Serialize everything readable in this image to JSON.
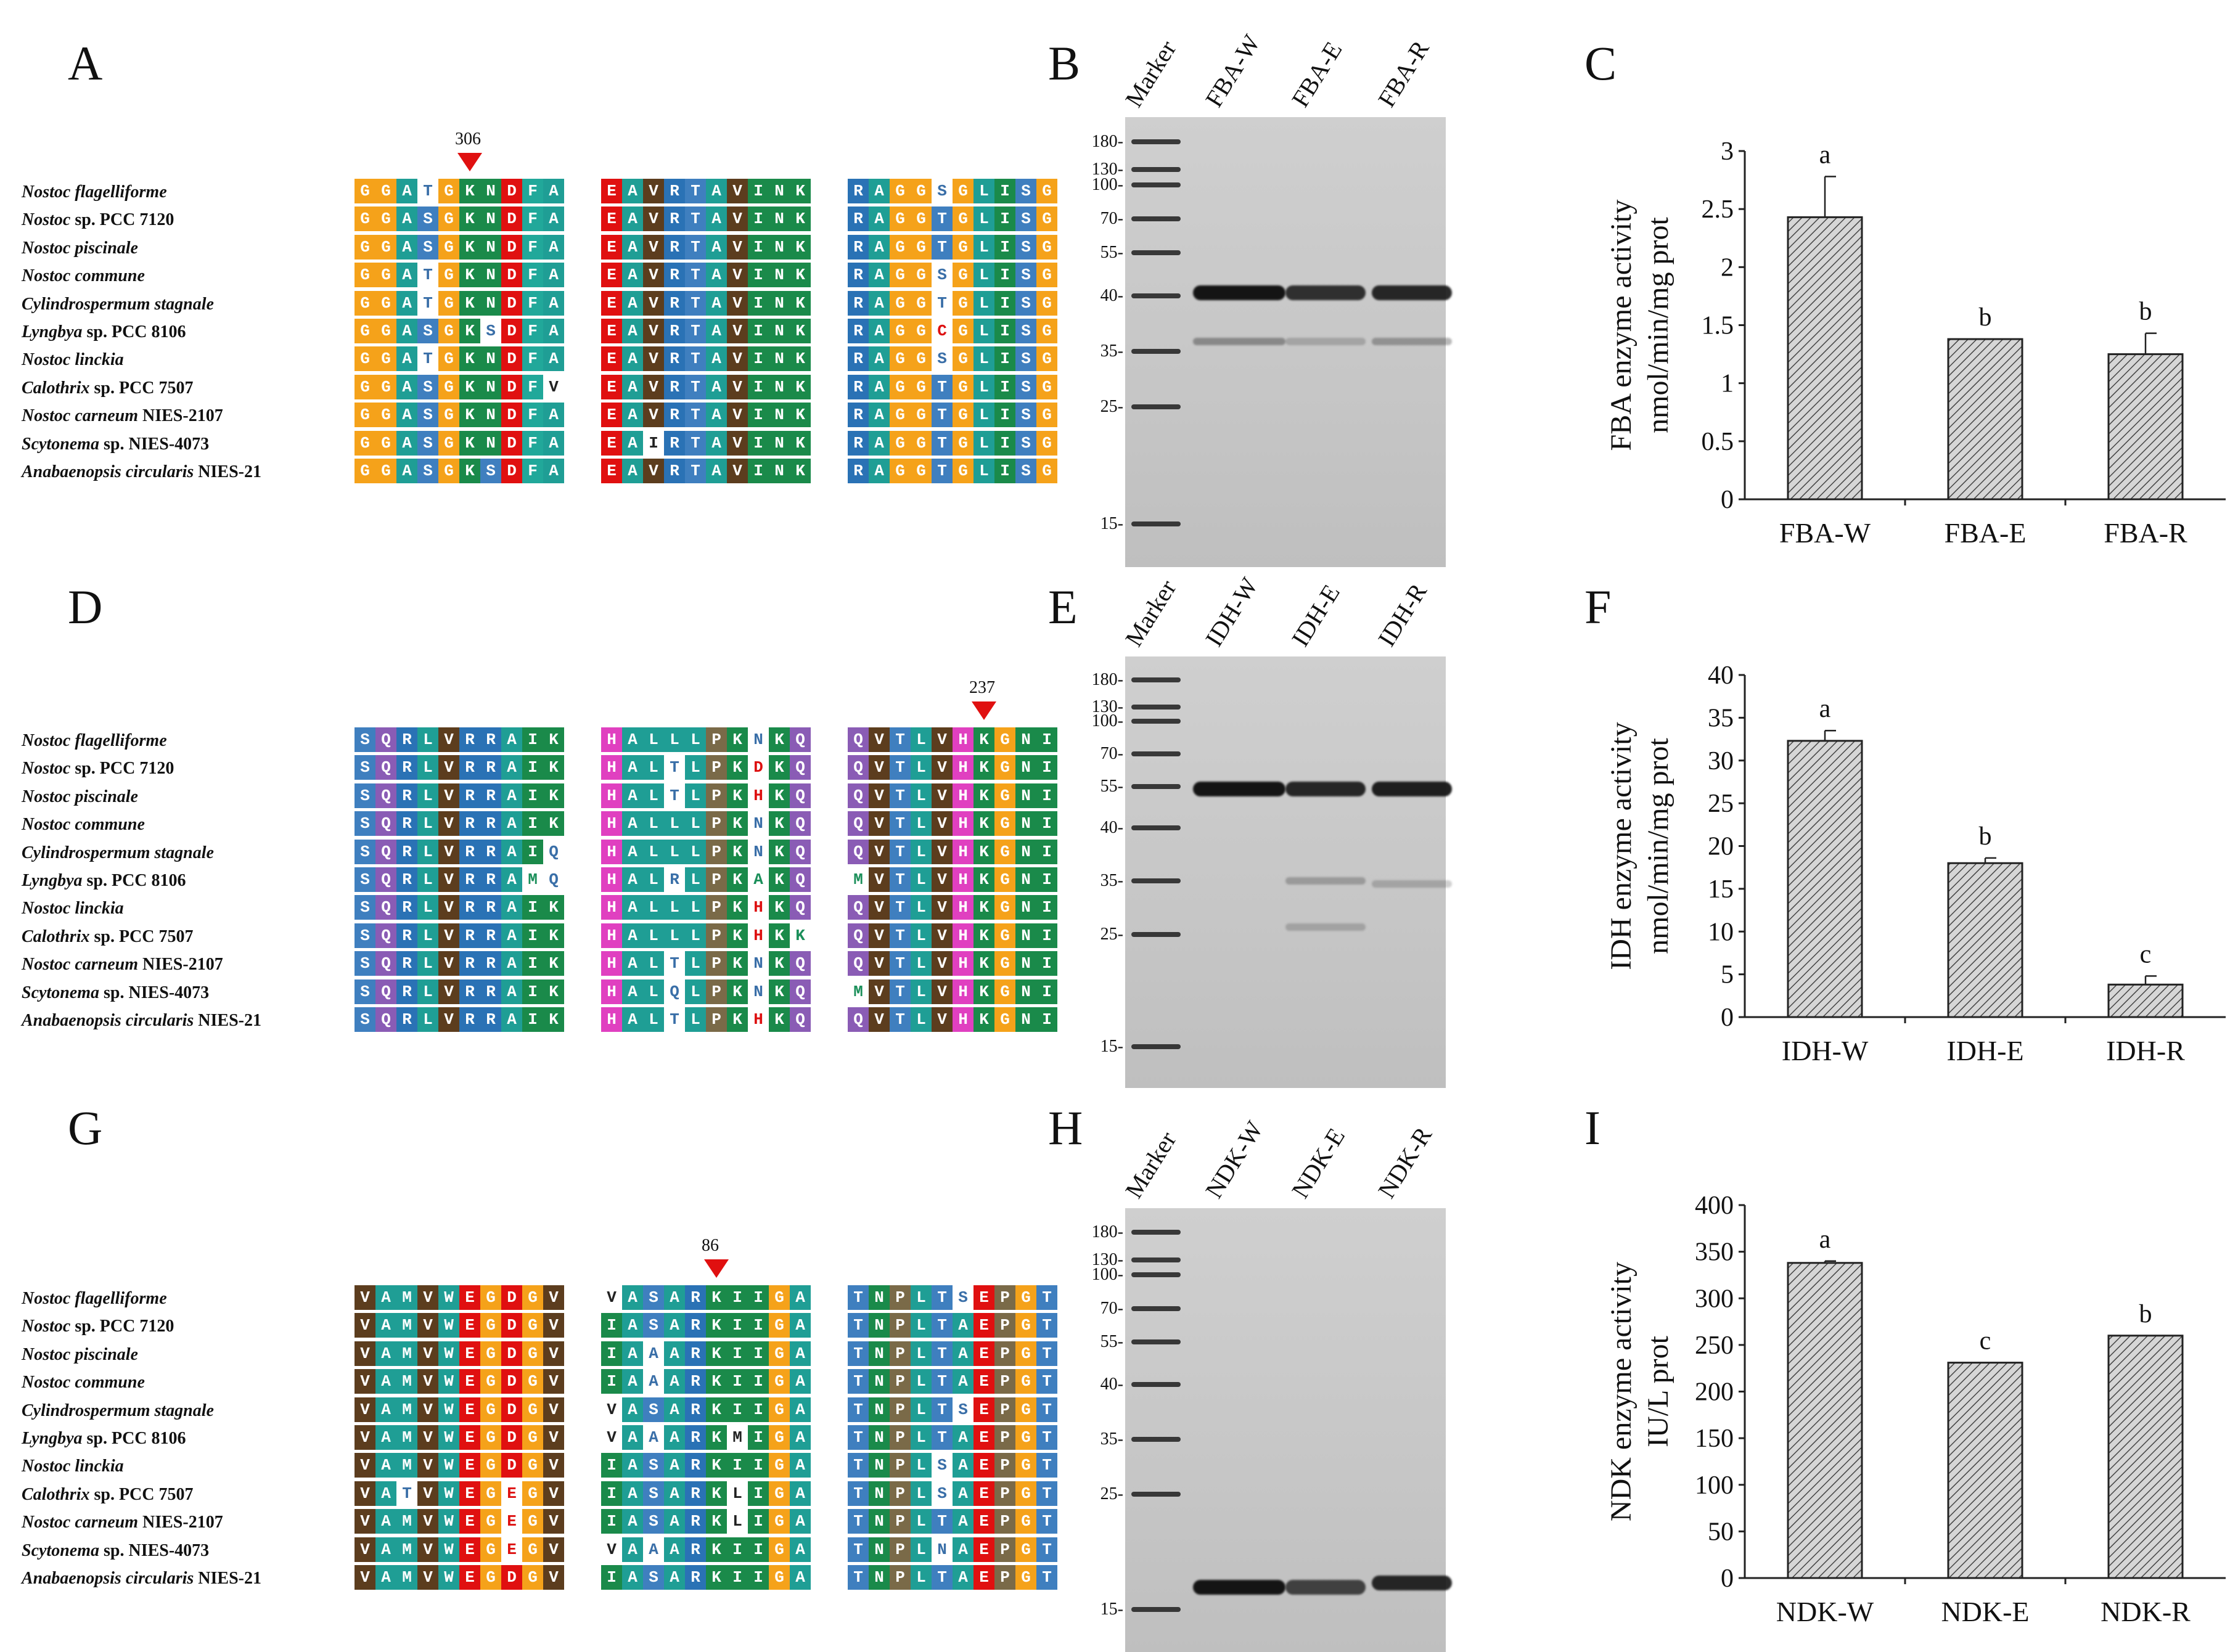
{
  "panels": {
    "A": "A",
    "B": "B",
    "C": "C",
    "D": "D",
    "E": "E",
    "F": "F",
    "G": "G",
    "H": "H",
    "I": "I"
  },
  "species": [
    {
      "genus": "Nostoc flagelliforme",
      "rest": ""
    },
    {
      "genus": "Nostoc",
      "rest": " sp. PCC 7120"
    },
    {
      "genus": "Nostoc piscinale",
      "rest": ""
    },
    {
      "genus": "Nostoc commune",
      "rest": ""
    },
    {
      "genus": "Cylindrospermum stagnale",
      "rest": ""
    },
    {
      "genus": "Lyngbya",
      "rest": " sp. PCC 8106"
    },
    {
      "genus": "Nostoc linckia",
      "rest": ""
    },
    {
      "genus": "Calothrix",
      "rest": " sp. PCC 7507"
    },
    {
      "genus": "Nostoc carneum",
      "rest": " NIES-2107"
    },
    {
      "genus": "Scytonema",
      "rest": " sp. NIES-4073"
    },
    {
      "genus": "Anabaenopsis circularis",
      "rest": " NIES-21"
    }
  ],
  "alignments": {
    "A": {
      "marker": "306",
      "blocks": [
        [
          "GGATGKNDFA",
          "GGASGKNDFA",
          "GGASGKNDFA",
          "GGATGKNDFA",
          "GGATGKNDFA",
          "GGASGKSDFA",
          "GGATGKNDFA",
          "GGASGKNDFV",
          "GGASGKNDFA",
          "GGASGKNDFA",
          "GGASGKSDFA"
        ],
        [
          "EAVRTAVINK",
          "EAVRTAVINK",
          "EAVRTAVINK",
          "EAVRTAVINK",
          "EAVRTAVINK",
          "EAVRTAVINK",
          "EAVRTAVINK",
          "EAVRTAVINK",
          "EAVRTAVINK",
          "EAIRTAVINK",
          "EAVRTAVINK"
        ],
        [
          "RAGGSGLISG",
          "RAGGTGLISG",
          "RAGGTGLISG",
          "RAGGSGLISG",
          "RAGGTGLISG",
          "RAGGCGLISG",
          "RAGGSGLISG",
          "RAGGTGLISG",
          "RAGGTGLISG",
          "RAGGTGLISG",
          "RAGGTGLISG"
        ]
      ]
    },
    "D": {
      "marker": "237",
      "blocks": [
        [
          "SQRLVRRAIK",
          "SQRLVRRAIK",
          "SQRLVRRAIK",
          "SQRLVRRAIK",
          "SQRLVRRAIQ",
          "SQRLVRRAMQ",
          "SQRLVRRAIK",
          "SQRLVRRAIK",
          "SQRLVRRAIK",
          "SQRLVRRAIK",
          "SQRLVRRAIK"
        ],
        [
          "HALLLPKNKQ",
          "HALTLPKDKQ",
          "HALTLPKHKQ",
          "HALLLPKNKQ",
          "HALLLPKNKQ",
          "HALRLPKAKQ",
          "HALLLPKHKQ",
          "HALLLPKHKK",
          "HALTLPKNKQ",
          "HALQLPKNKQ",
          "HALTLPKHKQ"
        ],
        [
          "QVTLVHKGNI",
          "QVTLVHKGNI",
          "QVTLVHKGNI",
          "QVTLVHKGNI",
          "QVTLVHKGNI",
          "MVTLVHKGNI",
          "QVTLVHKGNI",
          "QVTLVHKGNI",
          "QVTLVHKGNI",
          "MVTLVHKGNI",
          "QVTLVHKGNI"
        ]
      ]
    },
    "G": {
      "marker": "86",
      "blocks": [
        [
          "VAMVWEGDGV",
          "VAMVWEGDGV",
          "VAMVWEGDGV",
          "VAMVWEGDGV",
          "VAMVWEGDGV",
          "VAMVWEGDGV",
          "VAMVWEGDGV",
          "VATVWEGEGV",
          "VAMVWEGEGV",
          "VAMVWEGEGV",
          "VAMVWEGDGV"
        ],
        [
          "VASARKIIGA",
          "IASARKIIGA",
          "IAAARKIIGA",
          "IAAARKIIGA",
          "VASARKIIGA",
          "VAAARKMIGA",
          "IASARKIIGA",
          "IASARKLIGA",
          "IASARKLIGA",
          "VAAARKIIGA",
          "IASARKIIGA"
        ],
        [
          "TNPLTSEPGT",
          "TNPLTAEPGT",
          "TNPLTAEPGT",
          "TNPLTAEPGT",
          "TNPLTSEPGT",
          "TNPLTAEPGT",
          "TNPLSAEPGT",
          "TNPLSAEPGT",
          "TNPLTAEPGT",
          "TNPLNAEPGT",
          "TNPLTAEPGT"
        ]
      ]
    }
  },
  "gels": {
    "B": {
      "lanes": [
        "Marker",
        "FBA-W",
        "FBA-E",
        "FBA-R"
      ]
    },
    "E": {
      "lanes": [
        "Marker",
        "IDH-W",
        "IDH-E",
        "IDH-R"
      ]
    },
    "H": {
      "lanes": [
        "Marker",
        "NDK-W",
        "NDK-E",
        "NDK-R"
      ]
    },
    "ladder": [
      "180-",
      "130-",
      "100-",
      "70-",
      "55-",
      "40-",
      "35-",
      "25-",
      "15-"
    ]
  },
  "chart_data": [
    {
      "type": "bar",
      "panel": "C",
      "categories": [
        "FBA-W",
        "FBA-E",
        "FBA-R"
      ],
      "values": [
        2.43,
        1.38,
        1.25
      ],
      "errors": [
        0.35,
        0.0,
        0.18
      ],
      "letters": [
        "a",
        "b",
        "b"
      ],
      "ylabel": "FBA enzyme activity",
      "ylabel2": "nmol/min/mg prot",
      "ylim": [
        0,
        3
      ],
      "yticks": [
        "0",
        "0.5",
        "1",
        "1.5",
        "2",
        "2.5",
        "3"
      ]
    },
    {
      "type": "bar",
      "panel": "F",
      "categories": [
        "IDH-W",
        "IDH-E",
        "IDH-R"
      ],
      "values": [
        32.3,
        18.0,
        3.8
      ],
      "errors": [
        1.2,
        0.6,
        1.0
      ],
      "letters": [
        "a",
        "b",
        "c"
      ],
      "ylabel": "IDH enzyme activity",
      "ylabel2": "nmol/min/mg prot",
      "ylim": [
        0,
        40
      ],
      "yticks": [
        "0",
        "5",
        "10",
        "15",
        "20",
        "25",
        "30",
        "35",
        "40"
      ]
    },
    {
      "type": "bar",
      "panel": "I",
      "categories": [
        "NDK-W",
        "NDK-E",
        "NDK-R"
      ],
      "values": [
        338,
        231,
        260
      ],
      "errors": [
        2,
        0,
        0
      ],
      "letters": [
        "a",
        "c",
        "b"
      ],
      "ylabel": "NDK enzyme activity",
      "ylabel2": "IU/L prot",
      "ylim": [
        0,
        400
      ],
      "yticks": [
        "0",
        "50",
        "100",
        "150",
        "200",
        "250",
        "300",
        "350",
        "400"
      ]
    }
  ],
  "colors": {
    "G": "#f5a21a",
    "A": "#1f9e95",
    "S": "#3f7fbf",
    "T": "#3f7fbf",
    "K": "#1a8a4a",
    "N": "#1a8a4a",
    "D": "#e01010",
    "E": "#e01010",
    "F": "#21a89a",
    "V": "#5c3d1e",
    "R": "#2a72b5",
    "I": "#1a8a4a",
    "L": "#1f9e95",
    "Q": "#8a5cb5",
    "H": "#e040c0",
    "P": "#7a6a48",
    "M": "#1f9e95",
    "W": "#1f9e95",
    "C": "#e01010"
  }
}
